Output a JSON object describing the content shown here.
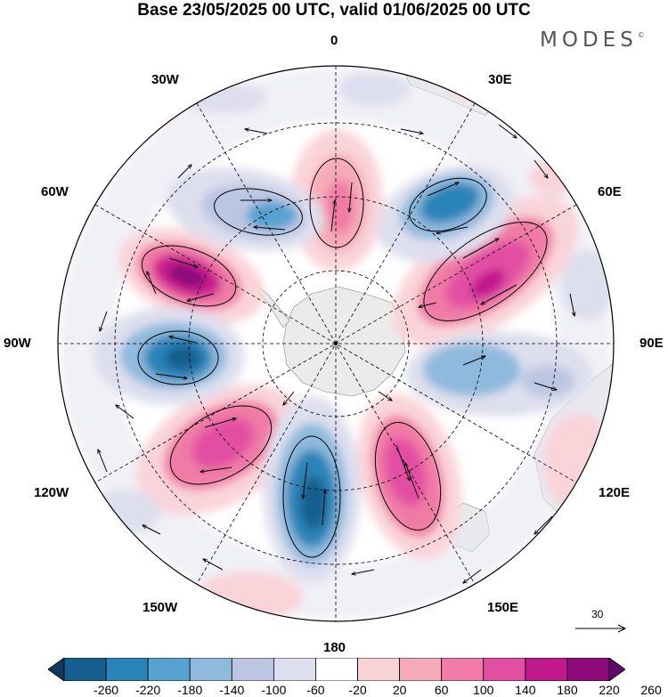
{
  "title": "Base 23/05/2025 00 UTC, valid 01/06/2025 00 UTC",
  "logo": "MODES",
  "logo_mark": "©",
  "longitude_labels": {
    "lon0": "0",
    "lon30e": "30E",
    "lon60e": "60E",
    "lon90e": "90E",
    "lon120e": "120E",
    "lon150e": "150E",
    "lon180": "180",
    "lon150w": "150W",
    "lon120w": "120W",
    "lon90w": "90W",
    "lon60w": "60W",
    "lon30w": "30W"
  },
  "reference_vector": {
    "value": "30"
  },
  "colorbar": {
    "labels": [
      "-260",
      "-220",
      "-180",
      "-140",
      "-100",
      "-60",
      "-20",
      "20",
      "60",
      "100",
      "140",
      "180",
      "220",
      "260"
    ],
    "colors": [
      "#0d3a5c",
      "#155f8e",
      "#2b84b8",
      "#56a2d0",
      "#8fbadd",
      "#bcc6e2",
      "#dedfee",
      "#ffffff",
      "#f8d3d6",
      "#f5aab8",
      "#f07ba6",
      "#e24fa2",
      "#c1198c",
      "#8e0a7a",
      "#5e0a6a"
    ]
  },
  "projection": "south-polar-stereographic",
  "field_colors": {
    "positive_strong": "#cc1f8f",
    "positive_mid": "#ec6ea9",
    "positive_weak": "#f9d4d9",
    "negative_strong": "#155f8e",
    "negative_mid": "#56a2d0",
    "negative_weak": "#dedfee",
    "land": "#ebebeb"
  }
}
